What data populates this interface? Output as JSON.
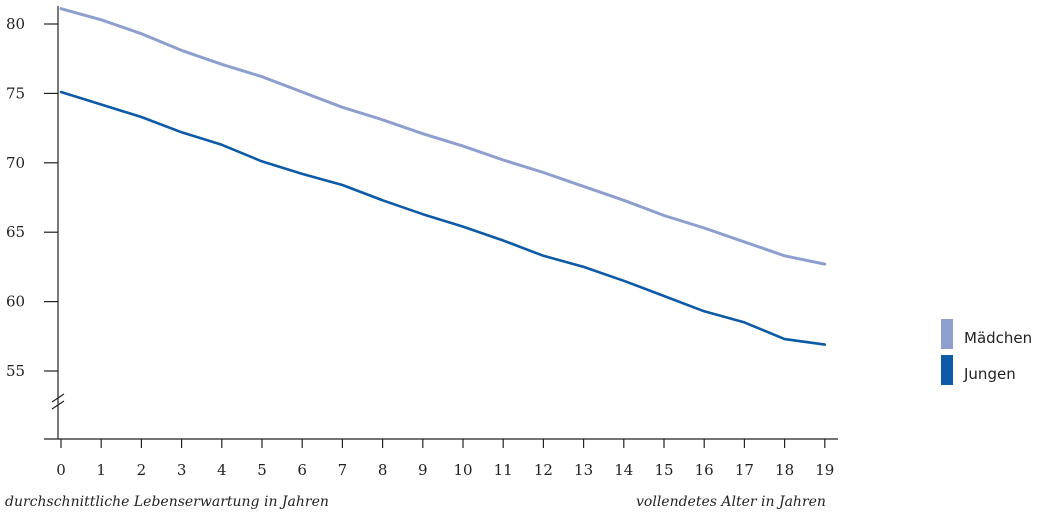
{
  "chart_data": {
    "type": "line",
    "x": [
      0,
      1,
      2,
      3,
      4,
      5,
      6,
      7,
      8,
      9,
      10,
      11,
      12,
      13,
      14,
      15,
      16,
      17,
      18,
      19
    ],
    "x_tick_labels": [
      "0",
      "1",
      "2",
      "3",
      "4",
      "5",
      "6",
      "7",
      "8",
      "9",
      "10",
      "11",
      "12",
      "13",
      "14",
      "15",
      "16",
      "17",
      "18",
      "19"
    ],
    "y_ticks": [
      55,
      60,
      65,
      70,
      75,
      80
    ],
    "y_tick_labels": [
      "55",
      "60",
      "65",
      "70",
      "75",
      "80"
    ],
    "ylim": [
      52,
      81
    ],
    "y_axis_break": true,
    "grid": false,
    "legend_position": "right",
    "series": [
      {
        "name": "Mädchen",
        "color": "#8e9fcf",
        "values": [
          81.1,
          80.3,
          79.3,
          78.1,
          77.1,
          76.2,
          75.1,
          74.0,
          73.1,
          72.1,
          71.2,
          70.2,
          69.3,
          68.3,
          67.3,
          66.2,
          65.3,
          64.3,
          63.3,
          62.7
        ]
      },
      {
        "name": "Jungen",
        "color": "#0d5aa7",
        "values": [
          75.1,
          74.2,
          73.3,
          72.2,
          71.3,
          70.1,
          69.2,
          68.4,
          67.3,
          66.3,
          65.4,
          64.4,
          63.3,
          62.5,
          61.5,
          60.4,
          59.3,
          58.5,
          57.3,
          56.9
        ]
      }
    ]
  },
  "captions": {
    "ylabel": "durchschnittliche Lebenserwartung in Jahren",
    "xlabel": "vollendetes Alter in Jahren"
  }
}
